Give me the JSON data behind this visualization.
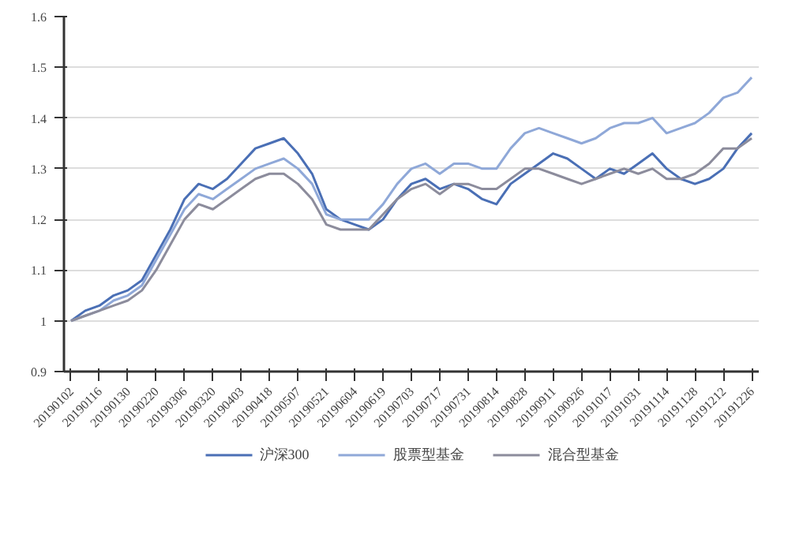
{
  "chart_data": {
    "type": "line",
    "categories": [
      "20190102",
      null,
      "20190116",
      null,
      "20190130",
      null,
      "20190220",
      null,
      "20190306",
      null,
      "20190320",
      null,
      "20190403",
      null,
      "20190418",
      null,
      "20190507",
      null,
      "20190521",
      null,
      "20190604",
      null,
      "20190619",
      null,
      "20190703",
      null,
      "20190717",
      null,
      "20190731",
      null,
      "20190814",
      null,
      "20190828",
      null,
      "20190911",
      null,
      "20190926",
      null,
      "20191017",
      null,
      "20191031",
      null,
      "20191114",
      null,
      "20191128",
      null,
      "20191212",
      null,
      "20191226"
    ],
    "series": [
      {
        "name": "沪深300",
        "color": "#4a6fb5",
        "values": [
          1.0,
          1.02,
          1.03,
          1.05,
          1.06,
          1.08,
          1.13,
          1.18,
          1.24,
          1.27,
          1.26,
          1.28,
          1.31,
          1.34,
          1.35,
          1.36,
          1.33,
          1.29,
          1.22,
          1.2,
          1.19,
          1.18,
          1.2,
          1.24,
          1.27,
          1.28,
          1.26,
          1.27,
          1.26,
          1.24,
          1.23,
          1.27,
          1.29,
          1.31,
          1.33,
          1.32,
          1.3,
          1.28,
          1.3,
          1.29,
          1.31,
          1.33,
          1.3,
          1.28,
          1.27,
          1.28,
          1.3,
          1.34,
          1.37
        ]
      },
      {
        "name": "股票型基金",
        "color": "#8fa8d8",
        "values": [
          1.0,
          1.01,
          1.02,
          1.04,
          1.05,
          1.07,
          1.12,
          1.17,
          1.22,
          1.25,
          1.24,
          1.26,
          1.28,
          1.3,
          1.31,
          1.32,
          1.3,
          1.27,
          1.21,
          1.2,
          1.2,
          1.2,
          1.23,
          1.27,
          1.3,
          1.31,
          1.29,
          1.31,
          1.31,
          1.3,
          1.3,
          1.34,
          1.37,
          1.38,
          1.37,
          1.36,
          1.35,
          1.36,
          1.38,
          1.39,
          1.39,
          1.4,
          1.37,
          1.38,
          1.39,
          1.41,
          1.44,
          1.45,
          1.48
        ]
      },
      {
        "name": "混合型基金",
        "color": "#8c8c9c",
        "values": [
          1.0,
          1.01,
          1.02,
          1.03,
          1.04,
          1.06,
          1.1,
          1.15,
          1.2,
          1.23,
          1.22,
          1.24,
          1.26,
          1.28,
          1.29,
          1.29,
          1.27,
          1.24,
          1.19,
          1.18,
          1.18,
          1.18,
          1.21,
          1.24,
          1.26,
          1.27,
          1.25,
          1.27,
          1.27,
          1.26,
          1.26,
          1.28,
          1.3,
          1.3,
          1.29,
          1.28,
          1.27,
          1.28,
          1.29,
          1.3,
          1.29,
          1.3,
          1.28,
          1.28,
          1.29,
          1.31,
          1.34,
          1.34,
          1.36
        ]
      }
    ],
    "ylim": [
      0.9,
      1.6
    ],
    "yticks": [
      0.9,
      1,
      1.1,
      1.2,
      1.3,
      1.4,
      1.5,
      1.6
    ],
    "grid": "y",
    "legend": "bottom",
    "marker": "none",
    "line_style": "solid"
  }
}
